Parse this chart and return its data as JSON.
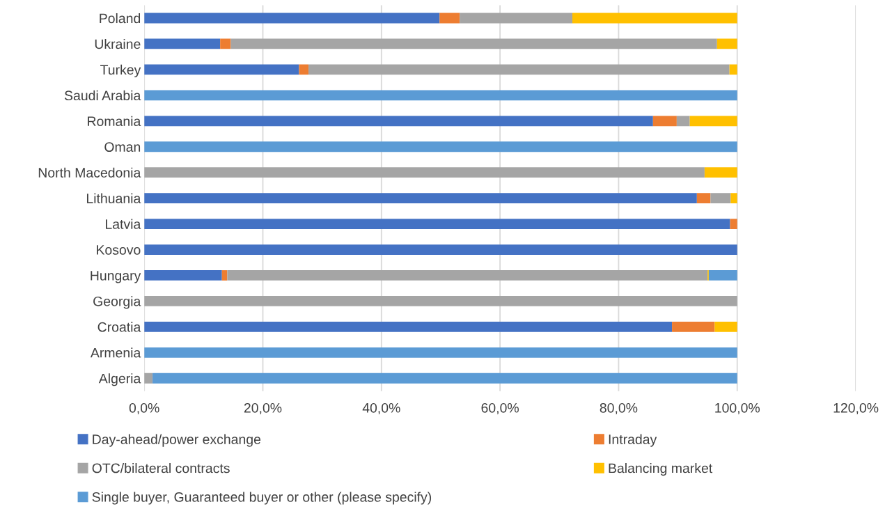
{
  "chart_data": {
    "type": "bar",
    "orientation": "horizontal",
    "stacked": true,
    "categories": [
      "Poland",
      "Ukraine",
      "Turkey",
      "Saudi Arabia",
      "Romania",
      "Oman",
      "North Macedonia",
      "Lithuania",
      "Latvia",
      "Kosovo",
      "Hungary",
      "Georgia",
      "Croatia",
      "Armenia",
      "Algeria"
    ],
    "series": [
      {
        "name": "Day-ahead/power exchange",
        "color": "#4472c4",
        "values": [
          49.8,
          12.8,
          26.1,
          0,
          85.8,
          0,
          0,
          93.2,
          98.8,
          100,
          13.1,
          0,
          89.0,
          0,
          0
        ]
      },
      {
        "name": "Intraday",
        "color": "#ed7d31",
        "values": [
          3.4,
          1.8,
          1.6,
          0,
          4.0,
          0,
          0,
          2.3,
          1.2,
          0,
          0.9,
          0,
          7.2,
          0,
          0
        ]
      },
      {
        "name": "OTC/bilateral contracts",
        "color": "#a5a5a5",
        "values": [
          19.0,
          82.0,
          71.0,
          0,
          2.2,
          0,
          94.5,
          3.4,
          0,
          0,
          81.0,
          100,
          0,
          0,
          1.4
        ]
      },
      {
        "name": "Balancing market",
        "color": "#ffc000",
        "values": [
          27.8,
          3.4,
          1.3,
          0,
          8.0,
          0,
          5.5,
          1.1,
          0,
          0,
          0.2,
          0,
          3.8,
          0,
          0
        ]
      },
      {
        "name": "Single buyer, Guaranteed buyer or other (please specify)",
        "color": "#5b9bd5",
        "values": [
          0,
          0,
          0,
          100,
          0,
          100,
          0,
          0,
          0,
          0,
          4.8,
          0,
          0,
          100,
          98.6
        ]
      }
    ],
    "xlim": [
      0,
      120
    ],
    "xticks": [
      {
        "value": 0,
        "label": "0,0%"
      },
      {
        "value": 20,
        "label": "20,0%"
      },
      {
        "value": 40,
        "label": "40,0%"
      },
      {
        "value": 60,
        "label": "60,0%"
      },
      {
        "value": 80,
        "label": "80,0%"
      },
      {
        "value": 100,
        "label": "100,0%"
      },
      {
        "value": 120,
        "label": "120,0%"
      }
    ],
    "grid": "x",
    "legend": "bottom"
  }
}
